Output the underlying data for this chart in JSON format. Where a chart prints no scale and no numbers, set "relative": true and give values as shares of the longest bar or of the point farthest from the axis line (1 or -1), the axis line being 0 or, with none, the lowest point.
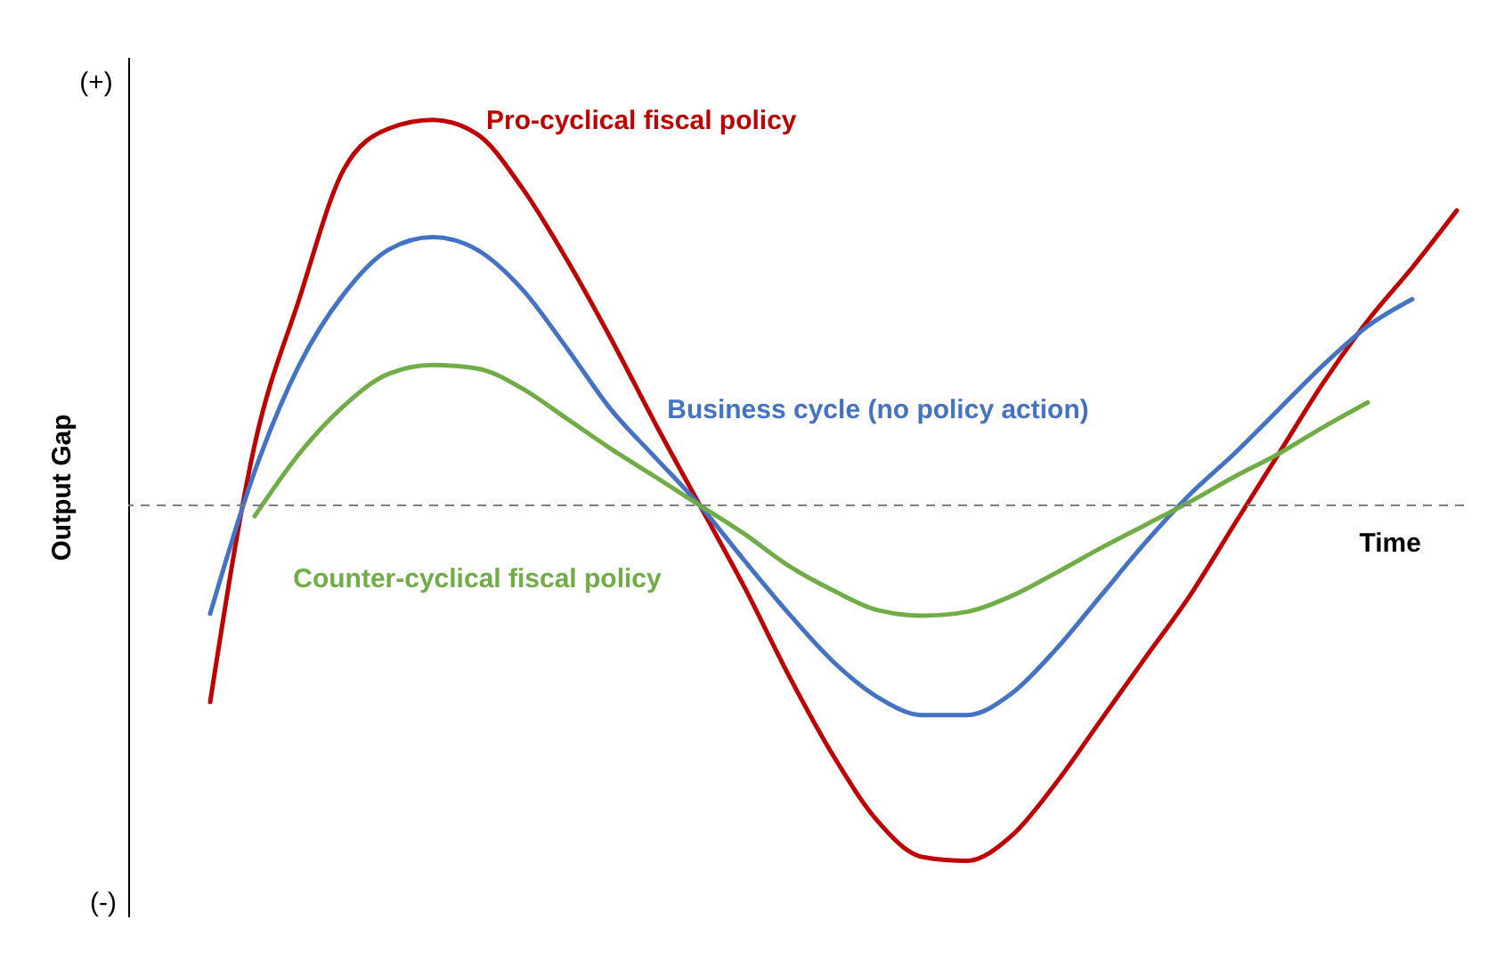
{
  "chart_data": {
    "type": "line",
    "relative": true,
    "ylabel": "Output Gap",
    "xlabel": "Time",
    "categories": [
      null,
      null,
      null,
      null,
      null,
      null,
      null,
      null,
      null,
      null,
      null,
      null,
      null,
      null,
      null,
      null,
      null,
      null,
      null,
      null,
      null,
      null,
      null,
      null,
      null,
      null,
      null,
      null,
      null
    ],
    "series": [
      {
        "name": "Pro-cyclical fiscal policy",
        "color": "#c00000",
        "values": [
          -0.51,
          0.157,
          0.535,
          0.871,
          0.977,
          1.0,
          0.963,
          0.825,
          0.64,
          0.433,
          0.212,
          0,
          -0.212,
          -0.442,
          -0.65,
          -0.82,
          -0.912,
          -0.922,
          -0.857,
          -0.72,
          -0.558,
          -0.396,
          -0.235,
          -0.05,
          0.134,
          0.318,
          0.479,
          0.617,
          0.765
        ]
      },
      {
        "name": "Business cycle (no policy action)",
        "color": "#4472c4",
        "values": [
          -0.281,
          0.088,
          0.364,
          0.548,
          0.663,
          0.696,
          0.663,
          0.562,
          0.41,
          0.249,
          0.124,
          0,
          -0.143,
          -0.281,
          -0.406,
          -0.498,
          -0.544,
          -0.544,
          -0.488,
          -0.373,
          -0.235,
          -0.097,
          0.028,
          0.134,
          0.249,
          0.364,
          0.465,
          0.535,
          null
        ]
      },
      {
        "name": "Counter-cyclical fiscal policy",
        "color": "#70ad47",
        "values": [
          null,
          -0.028,
          0.134,
          0.258,
          0.341,
          0.364,
          0.355,
          0.304,
          0.226,
          0.147,
          0.074,
          0,
          -0.074,
          -0.157,
          -0.221,
          -0.272,
          -0.286,
          -0.276,
          -0.235,
          -0.175,
          -0.111,
          -0.051,
          0.009,
          0.074,
          0.134,
          0.203,
          0.267,
          null,
          null
        ]
      }
    ],
    "ref_lines": [
      {
        "axis": "y",
        "value": 0,
        "color": "#7f7f7f",
        "line_style": "dashed"
      }
    ],
    "annotations": [
      "(+)",
      "(-)"
    ],
    "line_style": "solid",
    "marker": "none"
  }
}
